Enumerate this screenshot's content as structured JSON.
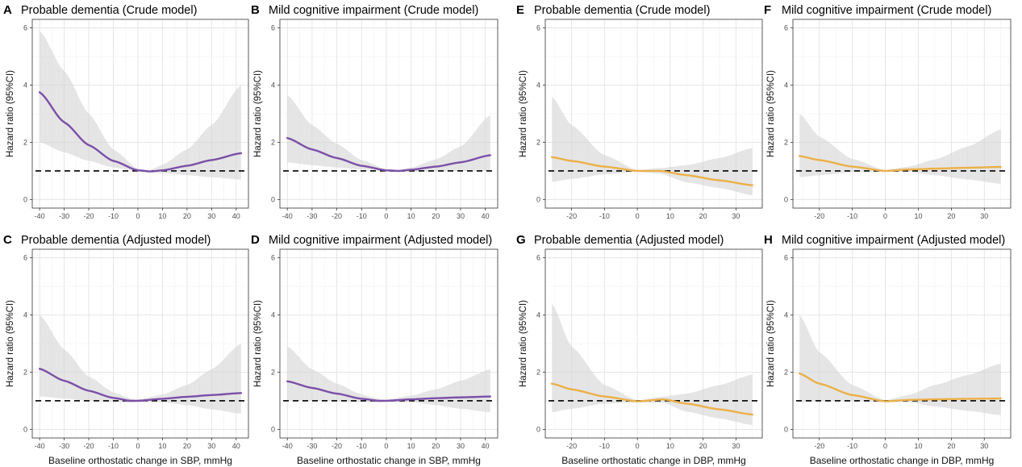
{
  "chart_data": [
    {
      "panel": "A",
      "title": "Probable dementia (Crude model)",
      "type": "line",
      "xlabel": "",
      "ylabel": "Hazard ratio (95%CI)",
      "xlim": [
        -43,
        45
      ],
      "ylim": [
        -0.3,
        6.3
      ],
      "xticks": [
        -40,
        -30,
        -20,
        -10,
        0,
        10,
        20,
        30,
        40
      ],
      "yticks": [
        0,
        2,
        4,
        6
      ],
      "reference_line": 1,
      "color": "#7b4fa8",
      "x": [
        -40,
        -30,
        -20,
        -10,
        0,
        5,
        10,
        20,
        30,
        42
      ],
      "hr": [
        3.75,
        2.7,
        1.9,
        1.35,
        1.02,
        0.98,
        1.02,
        1.18,
        1.38,
        1.62
      ],
      "lower": [
        2.0,
        1.65,
        1.35,
        1.12,
        0.98,
        0.95,
        0.92,
        0.85,
        0.78,
        0.7
      ],
      "upper": [
        5.9,
        4.5,
        3.0,
        1.75,
        1.08,
        1.03,
        1.22,
        1.75,
        2.6,
        4.0
      ]
    },
    {
      "panel": "B",
      "title": "Mild cognitive impairment (Crude model)",
      "type": "line",
      "xlabel": "",
      "ylabel": "Hazard ratio (95%CI)",
      "xlim": [
        -43,
        45
      ],
      "ylim": [
        -0.3,
        6.3
      ],
      "xticks": [
        -40,
        -30,
        -20,
        -10,
        0,
        10,
        20,
        30,
        40
      ],
      "yticks": [
        0,
        2,
        4,
        6
      ],
      "reference_line": 1,
      "color": "#7b4fa8",
      "x": [
        -40,
        -30,
        -20,
        -10,
        0,
        5,
        10,
        20,
        30,
        42
      ],
      "hr": [
        2.15,
        1.75,
        1.45,
        1.18,
        1.02,
        1.0,
        1.04,
        1.15,
        1.3,
        1.55
      ],
      "lower": [
        1.3,
        1.2,
        1.12,
        1.05,
        0.98,
        0.96,
        0.96,
        0.98,
        1.0,
        1.0
      ],
      "upper": [
        3.65,
        2.6,
        1.95,
        1.38,
        1.06,
        1.04,
        1.12,
        1.4,
        1.85,
        2.95
      ]
    },
    {
      "panel": "E",
      "title": "Probable dementia (Crude model)",
      "type": "line",
      "xlabel": "",
      "ylabel": "Hazard ratio (95%CI)",
      "xlim": [
        -28,
        38
      ],
      "ylim": [
        -0.3,
        6.3
      ],
      "xticks": [
        -20,
        -10,
        0,
        10,
        20,
        30
      ],
      "yticks": [
        0,
        2,
        4,
        6
      ],
      "reference_line": 1,
      "color": "#ebb048",
      "x": [
        -26,
        -20,
        -10,
        0,
        7,
        15,
        25,
        35
      ],
      "hr": [
        1.48,
        1.35,
        1.15,
        1.0,
        1.0,
        0.85,
        0.67,
        0.5
      ],
      "lower": [
        0.62,
        0.72,
        0.88,
        0.97,
        0.9,
        0.6,
        0.4,
        0.15
      ],
      "upper": [
        3.6,
        2.6,
        1.55,
        1.03,
        1.1,
        1.2,
        1.45,
        1.8
      ]
    },
    {
      "panel": "F",
      "title": "Mild cognitive impairment (Crude model)",
      "type": "line",
      "xlabel": "",
      "ylabel": "Hazard ratio (95%CI)",
      "xlim": [
        -28,
        38
      ],
      "ylim": [
        -0.3,
        6.3
      ],
      "xticks": [
        -20,
        -10,
        0,
        10,
        20,
        30
      ],
      "yticks": [
        0,
        2,
        4,
        6
      ],
      "reference_line": 1,
      "color": "#ebb048",
      "x": [
        -26,
        -20,
        -10,
        0,
        7,
        15,
        25,
        35
      ],
      "hr": [
        1.52,
        1.38,
        1.15,
        1.0,
        1.05,
        1.08,
        1.11,
        1.14
      ],
      "lower": [
        0.78,
        0.85,
        0.95,
        0.97,
        0.97,
        0.85,
        0.7,
        0.55
      ],
      "upper": [
        3.0,
        2.2,
        1.42,
        1.03,
        1.15,
        1.4,
        1.85,
        2.45
      ]
    },
    {
      "panel": "C",
      "title": "Probable dementia (Adjusted model)",
      "type": "line",
      "xlabel": "Baseline orthostatic change in SBP, mmHg",
      "ylabel": "Hazard ratio (95%CI)",
      "xlim": [
        -43,
        45
      ],
      "ylim": [
        -0.3,
        6.3
      ],
      "xticks": [
        -40,
        -30,
        -20,
        -10,
        0,
        10,
        20,
        30,
        40
      ],
      "yticks": [
        0,
        2,
        4,
        6
      ],
      "reference_line": 1,
      "color": "#7b4fa8",
      "x": [
        -40,
        -30,
        -20,
        -10,
        -3,
        0,
        10,
        20,
        30,
        42
      ],
      "hr": [
        2.12,
        1.7,
        1.35,
        1.1,
        1.0,
        1.0,
        1.07,
        1.14,
        1.2,
        1.27
      ],
      "lower": [
        1.15,
        1.08,
        1.0,
        0.95,
        0.93,
        0.96,
        0.95,
        0.85,
        0.7,
        0.55
      ],
      "upper": [
        4.0,
        2.8,
        1.85,
        1.3,
        1.08,
        1.04,
        1.22,
        1.55,
        2.1,
        3.0
      ]
    },
    {
      "panel": "D",
      "title": "Mild cognitive impairment (Adjusted model)",
      "type": "line",
      "xlabel": "Baseline orthostatic change in SBP, mmHg",
      "ylabel": "Hazard ratio (95%CI)",
      "xlim": [
        -43,
        45
      ],
      "ylim": [
        -0.3,
        6.3
      ],
      "xticks": [
        -40,
        -30,
        -20,
        -10,
        0,
        10,
        20,
        30,
        40
      ],
      "yticks": [
        0,
        2,
        4,
        6
      ],
      "reference_line": 1,
      "color": "#7b4fa8",
      "x": [
        -40,
        -30,
        -20,
        -10,
        -3,
        0,
        10,
        20,
        30,
        42
      ],
      "hr": [
        1.68,
        1.45,
        1.25,
        1.07,
        1.0,
        1.0,
        1.05,
        1.09,
        1.12,
        1.15
      ],
      "lower": [
        1.0,
        1.0,
        0.98,
        0.95,
        0.94,
        0.96,
        0.95,
        0.85,
        0.72,
        0.6
      ],
      "upper": [
        2.9,
        2.1,
        1.6,
        1.22,
        1.07,
        1.04,
        1.18,
        1.4,
        1.7,
        2.1
      ]
    },
    {
      "panel": "G",
      "title": "Probable dementia (Adjusted model)",
      "type": "line",
      "xlabel": "Baseline orthostatic change in DBP, mmHg",
      "ylabel": "Hazard ratio (95%CI)",
      "xlim": [
        -28,
        38
      ],
      "ylim": [
        -0.3,
        6.3
      ],
      "xticks": [
        -20,
        -10,
        0,
        10,
        20,
        30
      ],
      "yticks": [
        0,
        2,
        4,
        6
      ],
      "reference_line": 1,
      "color": "#ebb048",
      "x": [
        -26,
        -20,
        -10,
        0,
        8,
        15,
        25,
        35
      ],
      "hr": [
        1.6,
        1.4,
        1.15,
        0.98,
        1.05,
        0.9,
        0.7,
        0.52
      ],
      "lower": [
        0.6,
        0.72,
        0.9,
        0.94,
        0.92,
        0.62,
        0.38,
        0.15
      ],
      "upper": [
        4.4,
        2.9,
        1.55,
        1.02,
        1.15,
        1.25,
        1.55,
        1.92
      ]
    },
    {
      "panel": "H",
      "title": "Mild cognitive impairment (Adjusted model)",
      "type": "line",
      "xlabel": "Baseline orthostatic change in DBP, mmHg",
      "ylabel": "Hazard ratio (95%CI)",
      "xlim": [
        -28,
        38
      ],
      "ylim": [
        -0.3,
        6.3
      ],
      "xticks": [
        -20,
        -10,
        0,
        10,
        20,
        30
      ],
      "yticks": [
        0,
        2,
        4,
        6
      ],
      "reference_line": 1,
      "color": "#ebb048",
      "x": [
        -26,
        -20,
        -10,
        0,
        7,
        15,
        25,
        35
      ],
      "hr": [
        1.95,
        1.6,
        1.2,
        0.98,
        1.03,
        1.05,
        1.07,
        1.08
      ],
      "lower": [
        0.95,
        0.98,
        0.98,
        0.95,
        0.95,
        0.8,
        0.65,
        0.5
      ],
      "upper": [
        4.0,
        2.7,
        1.55,
        1.02,
        1.2,
        1.55,
        1.9,
        2.3
      ]
    }
  ]
}
